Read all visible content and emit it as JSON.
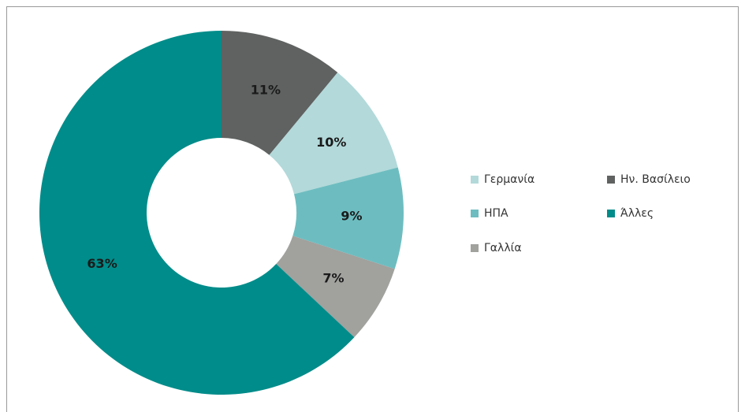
{
  "chart_data": {
    "type": "pie",
    "categories": [
      "Ην. Βασίλειο",
      "Γερμανία",
      "ΗΠΑ",
      "Γαλλία",
      "Άλλες"
    ],
    "values": [
      11,
      10,
      9,
      7,
      63
    ],
    "value_labels": [
      "11%",
      "10%",
      "9%",
      "7%",
      "63%"
    ],
    "colors": [
      "#5f6261",
      "#b3d9da",
      "#6dbdc0",
      "#a1a19e",
      "#008c8a"
    ],
    "legend": "right"
  }
}
